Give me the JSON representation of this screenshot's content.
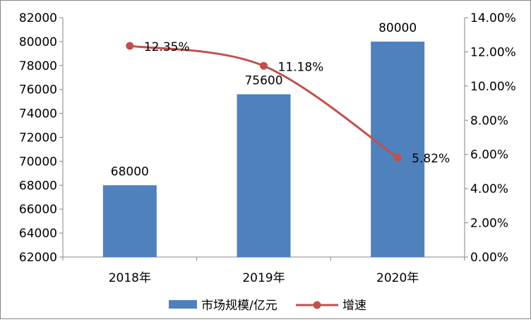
{
  "chart_data": {
    "type": "bar",
    "categories": [
      "2018年",
      "2019年",
      "2020年"
    ],
    "series": [
      {
        "name": "市场规模/亿元",
        "type": "bar",
        "axis": "left",
        "color": "#4f81bd",
        "values": [
          68000,
          75600,
          80000
        ],
        "labels": [
          "68000",
          "75600",
          "80000"
        ]
      },
      {
        "name": "增速",
        "type": "line",
        "axis": "right",
        "color": "#c0504d",
        "values": [
          12.35,
          11.18,
          5.82
        ],
        "labels": [
          "12.35%",
          "11.18%",
          "5.82%"
        ]
      }
    ],
    "y_left": {
      "min": 62000,
      "max": 82000,
      "step": 2000,
      "ticks": [
        "62000",
        "64000",
        "66000",
        "68000",
        "70000",
        "72000",
        "74000",
        "76000",
        "78000",
        "80000",
        "82000"
      ]
    },
    "y_right": {
      "min": 0,
      "max": 14,
      "step": 2,
      "ticks": [
        "0.00%",
        "2.00%",
        "4.00%",
        "6.00%",
        "8.00%",
        "10.00%",
        "12.00%",
        "14.00%"
      ]
    },
    "grid": false,
    "legend": "bottom"
  }
}
